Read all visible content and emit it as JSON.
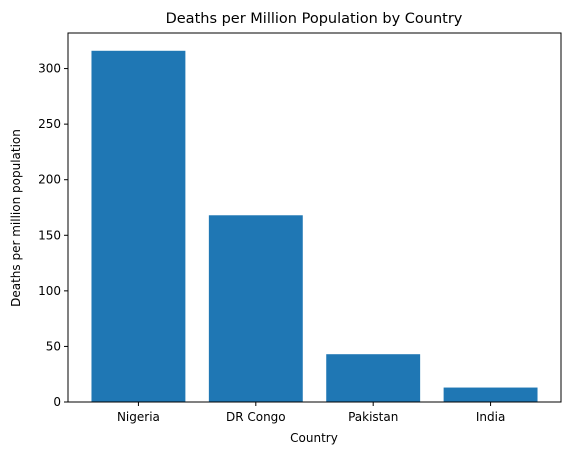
{
  "chart_data": {
    "type": "bar",
    "title": "Deaths per Million Population by Country",
    "xlabel": "Country",
    "ylabel": "Deaths per million population",
    "categories": [
      "Nigeria",
      "DR Congo",
      "Pakistan",
      "India"
    ],
    "values": [
      316,
      168,
      43,
      13
    ],
    "ylim": [
      0,
      332
    ],
    "yticks": [
      0,
      50,
      100,
      150,
      200,
      250,
      300
    ],
    "bar_color": "#1f77b4",
    "grid": false,
    "legend": "none"
  }
}
